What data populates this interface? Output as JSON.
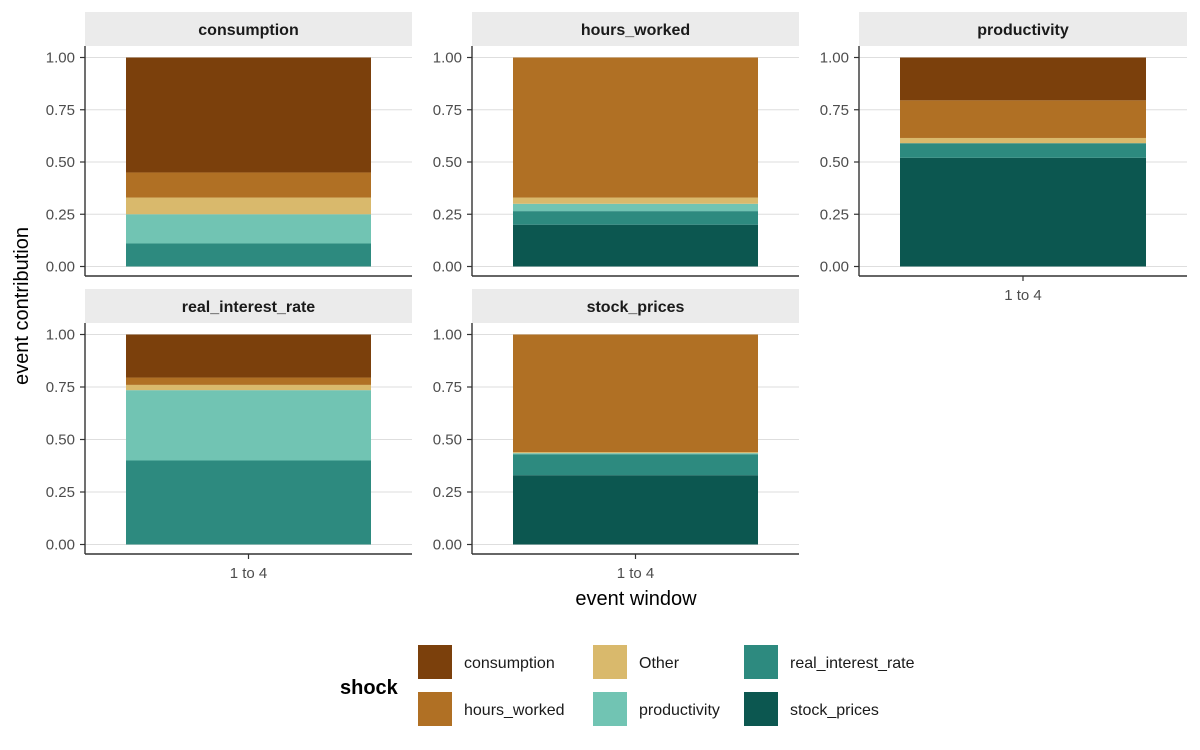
{
  "chart_data": {
    "type": "bar",
    "stacked": true,
    "xlabel": "event window",
    "ylabel": "event contribution",
    "ylim": [
      0,
      1
    ],
    "y_ticks": [
      0,
      0.25,
      0.5,
      0.75,
      1
    ],
    "y_tick_labels": [
      "0.00",
      "0.25",
      "0.50",
      "0.75",
      "1.00"
    ],
    "grid": true,
    "legend": {
      "title": "shock",
      "position": "bottom",
      "entries": [
        "consumption",
        "hours_worked",
        "Other",
        "productivity",
        "real_interest_rate",
        "stock_prices"
      ]
    },
    "colors": {
      "consumption": "#7b400c",
      "hours_worked": "#b07024",
      "Other": "#d9b96c",
      "productivity": "#71c4b3",
      "real_interest_rate": "#2d8a7f",
      "stock_prices": "#0c5750"
    },
    "stack_order": [
      "stock_prices",
      "real_interest_rate",
      "productivity",
      "Other",
      "hours_worked",
      "consumption"
    ],
    "panels": [
      {
        "title": "consumption",
        "category": "1 to 4",
        "values": {
          "stock_prices": 0.0,
          "real_interest_rate": 0.11,
          "productivity": 0.14,
          "Other": 0.08,
          "hours_worked": 0.12,
          "consumption": 0.55
        }
      },
      {
        "title": "hours_worked",
        "category": "1 to 4",
        "values": {
          "stock_prices": 0.2,
          "real_interest_rate": 0.065,
          "productivity": 0.035,
          "Other": 0.03,
          "hours_worked": 0.67,
          "consumption": 0.0
        }
      },
      {
        "title": "productivity",
        "category": "1 to 4",
        "values": {
          "stock_prices": 0.52,
          "real_interest_rate": 0.07,
          "productivity": 0.0,
          "Other": 0.025,
          "hours_worked": 0.18,
          "consumption": 0.205
        }
      },
      {
        "title": "real_interest_rate",
        "category": "1 to 4",
        "values": {
          "stock_prices": 0.0,
          "real_interest_rate": 0.4,
          "productivity": 0.335,
          "Other": 0.025,
          "hours_worked": 0.035,
          "consumption": 0.205
        }
      },
      {
        "title": "stock_prices",
        "category": "1 to 4",
        "values": {
          "stock_prices": 0.33,
          "real_interest_rate": 0.1,
          "productivity": 0.005,
          "Other": 0.005,
          "hours_worked": 0.56,
          "consumption": 0.0
        }
      }
    ]
  }
}
